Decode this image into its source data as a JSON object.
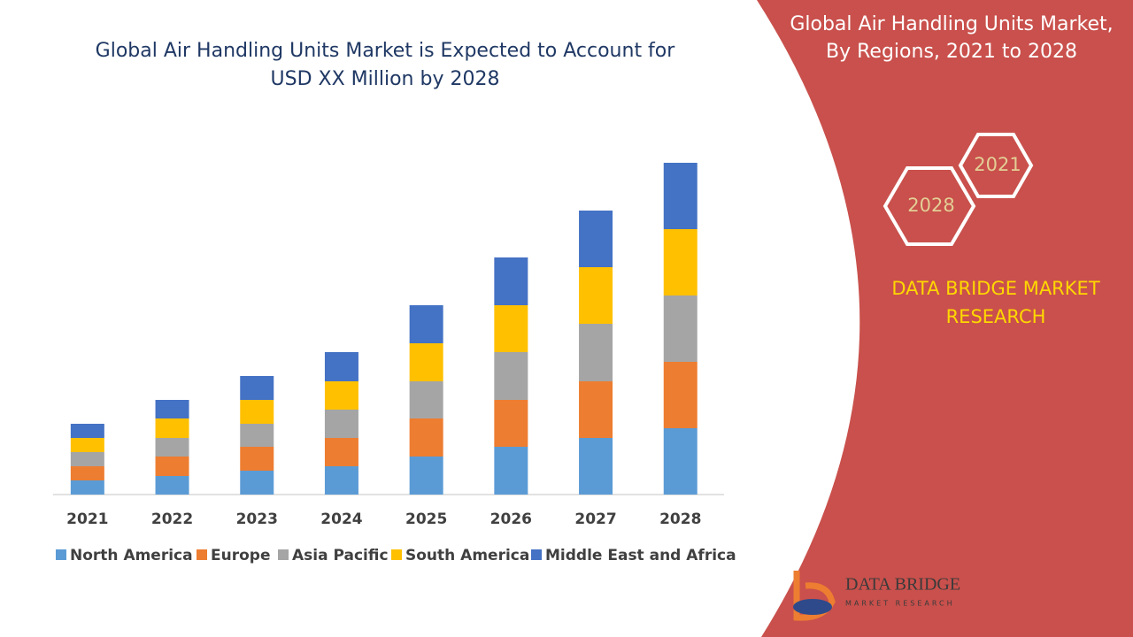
{
  "chart_data": {
    "type": "stacked-bar",
    "title": "Global Air Handling Units Market is Expected to Account for USD XX Million by 2028",
    "categories": [
      "2021",
      "2022",
      "2023",
      "2024",
      "2025",
      "2026",
      "2027",
      "2028"
    ],
    "series": [
      {
        "name": "North America",
        "color": "#5b9bd5",
        "values": [
          16,
          21,
          27,
          32,
          43,
          54,
          64,
          75
        ]
      },
      {
        "name": "Europe",
        "color": "#ed7d31",
        "values": [
          16,
          22,
          27,
          32,
          43,
          53,
          64,
          75
        ]
      },
      {
        "name": "Asia Pacific",
        "color": "#a5a5a5",
        "values": [
          16,
          21,
          26,
          32,
          42,
          54,
          65,
          75
        ]
      },
      {
        "name": "South America",
        "color": "#ffc000",
        "values": [
          16,
          22,
          27,
          32,
          43,
          53,
          64,
          75
        ]
      },
      {
        "name": "Middle East and Africa",
        "color": "#4472c4",
        "values": [
          16,
          21,
          27,
          33,
          43,
          54,
          64,
          75
        ]
      }
    ]
  },
  "panel": {
    "title": "Global Air Handling Units Market, By Regions, 2021 to 2028",
    "hexagons": [
      "2021",
      "2028"
    ],
    "brand": "DATA BRIDGE MARKET RESEARCH",
    "logo_name": "DATA BRIDGE",
    "logo_tagline": "MARKET RESEARCH"
  }
}
